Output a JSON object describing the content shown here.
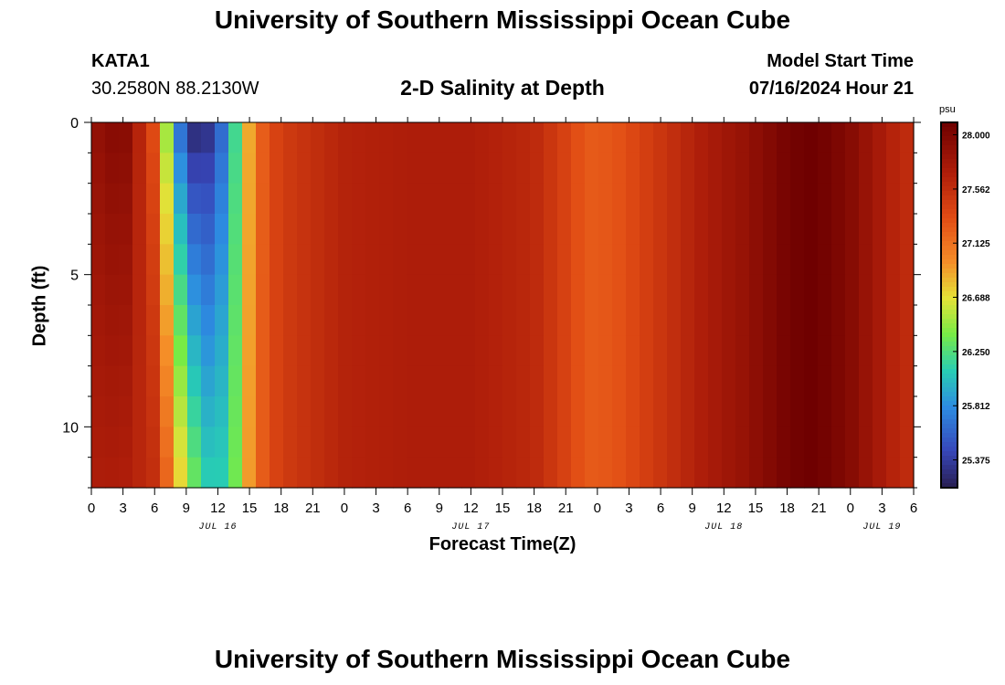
{
  "header": {
    "title": "University of Southern Mississippi Ocean Cube",
    "station_id": "KATA1",
    "coordinates": "30.2580N  88.2130W",
    "subtitle": "2-D Salinity at Depth",
    "start_label": "Model Start Time",
    "start_value": "07/16/2024 Hour 21"
  },
  "footer": {
    "title": "University of Southern Mississippi Ocean Cube"
  },
  "chart_data": {
    "type": "heatmap",
    "title": "2-D Salinity at Depth",
    "xlabel": "Forecast Time(Z)",
    "ylabel": "Depth (ft)",
    "y_range": [
      0,
      12
    ],
    "y_ticks": [
      0,
      5,
      10
    ],
    "x_range_hours": [
      0,
      78
    ],
    "x_tick_step_hours": 3,
    "x_tick_labels": [
      "0",
      "3",
      "6",
      "9",
      "12",
      "15",
      "18",
      "21",
      "0",
      "3",
      "6",
      "9",
      "12",
      "15",
      "18",
      "21",
      "0",
      "3",
      "6",
      "9",
      "12",
      "15",
      "18",
      "21",
      "0",
      "3",
      "6"
    ],
    "date_labels": [
      {
        "text": "JUL 16",
        "hour": 12
      },
      {
        "text": "JUL 17",
        "hour": 36
      },
      {
        "text": "JUL 18",
        "hour": 60
      },
      {
        "text": "JUL 19",
        "hour": 75
      }
    ],
    "colorbar": {
      "unit": "psu",
      "min": 25.15,
      "max": 28.1,
      "tick_values": [
        28.0,
        27.562,
        27.125,
        26.688,
        26.25,
        25.812,
        25.375
      ],
      "tick_labels": [
        "28.000",
        "27.562",
        "27.125",
        "26.688",
        "26.250",
        "25.812",
        "25.375"
      ]
    },
    "time_hours": [
      0,
      3,
      6,
      7.5,
      9,
      10.5,
      12,
      13.5,
      15,
      16.5,
      18,
      21,
      24,
      30,
      36,
      42,
      45,
      47,
      48,
      50,
      54,
      58,
      62,
      64,
      66,
      68,
      70,
      72,
      74,
      76,
      78
    ],
    "surface_psu": [
      27.85,
      28.0,
      27.3,
      26.2,
      25.25,
      25.15,
      25.45,
      26.1,
      26.9,
      27.3,
      27.45,
      27.55,
      27.65,
      27.7,
      27.7,
      27.6,
      27.4,
      27.25,
      27.25,
      27.3,
      27.5,
      27.7,
      27.85,
      27.95,
      28.05,
      28.1,
      28.05,
      27.95,
      27.8,
      27.65,
      27.55
    ],
    "bottom_psu": [
      27.7,
      27.7,
      27.55,
      27.1,
      26.55,
      26.15,
      26.05,
      26.3,
      26.95,
      27.3,
      27.45,
      27.55,
      27.65,
      27.7,
      27.7,
      27.6,
      27.4,
      27.25,
      27.25,
      27.3,
      27.5,
      27.7,
      27.85,
      27.95,
      28.05,
      28.1,
      28.05,
      27.95,
      27.8,
      27.65,
      27.55
    ],
    "grid_columns": 60,
    "grid_rows": 12
  }
}
